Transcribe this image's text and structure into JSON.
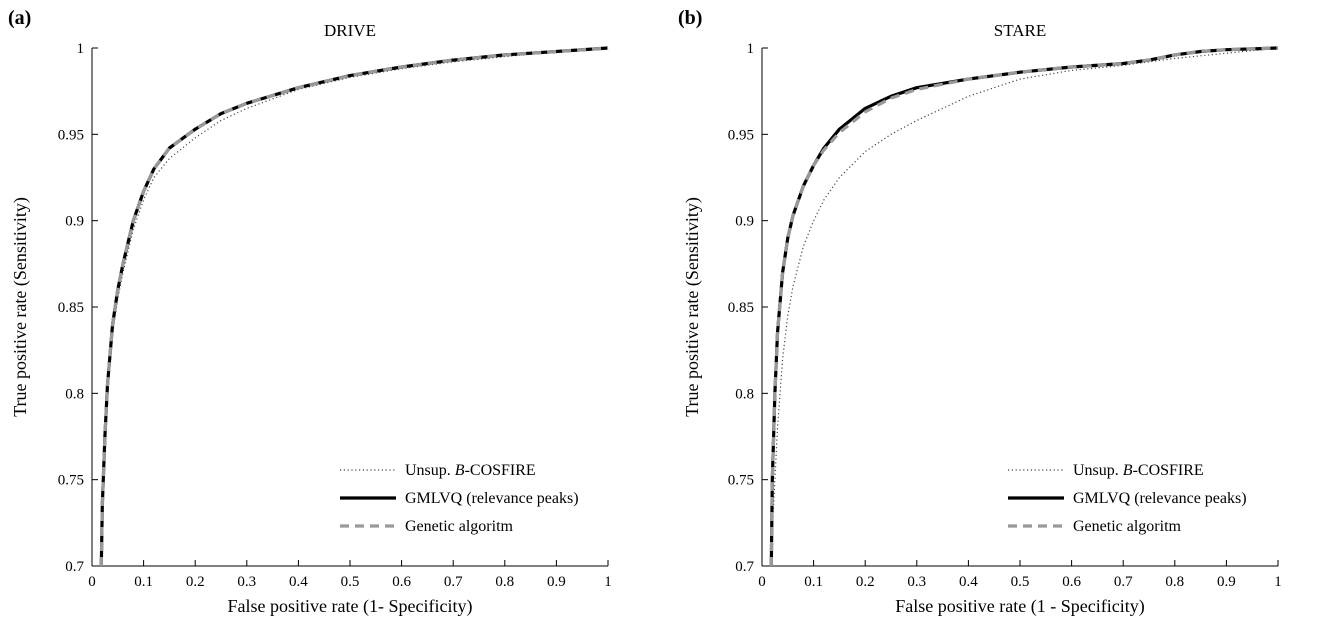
{
  "chart_data": [
    {
      "type": "line",
      "panel_label": "(a)",
      "title": "DRIVE",
      "xlabel": "False positive rate (1- Specificity)",
      "ylabel": "True positive rate (Sensitivity)",
      "xlim": [
        0,
        1
      ],
      "ylim": [
        0.7,
        1
      ],
      "xticks": [
        "0",
        "0.1",
        "0.2",
        "0.3",
        "0.4",
        "0.5",
        "0.6",
        "0.7",
        "0.8",
        "0.9",
        "1"
      ],
      "yticks": [
        "0.7",
        "0.75",
        "0.8",
        "0.85",
        "0.9",
        "0.95",
        "1"
      ],
      "grid": false,
      "legend_position": "bottom-right",
      "series": [
        {
          "name_prefix": "Unsup. ",
          "name_italic": "B",
          "name_suffix": "-COSFIRE",
          "style": "dotted",
          "color": "#444444",
          "x": [
            0.018,
            0.02,
            0.025,
            0.03,
            0.04,
            0.05,
            0.06,
            0.08,
            0.1,
            0.12,
            0.15,
            0.2,
            0.25,
            0.3,
            0.4,
            0.5,
            0.6,
            0.7,
            0.8,
            0.9,
            1.0
          ],
          "y": [
            0.7,
            0.73,
            0.77,
            0.8,
            0.835,
            0.855,
            0.87,
            0.895,
            0.912,
            0.925,
            0.936,
            0.948,
            0.958,
            0.965,
            0.976,
            0.983,
            0.988,
            0.992,
            0.995,
            0.998,
            1.0
          ]
        },
        {
          "name": "GMLVQ (relevance peaks)",
          "style": "solid",
          "color": "#000000",
          "x": [
            0.018,
            0.02,
            0.025,
            0.03,
            0.04,
            0.05,
            0.06,
            0.08,
            0.1,
            0.12,
            0.15,
            0.2,
            0.25,
            0.3,
            0.4,
            0.5,
            0.6,
            0.7,
            0.8,
            0.9,
            1.0
          ],
          "y": [
            0.7,
            0.735,
            0.775,
            0.805,
            0.84,
            0.86,
            0.875,
            0.9,
            0.917,
            0.93,
            0.942,
            0.953,
            0.962,
            0.968,
            0.977,
            0.984,
            0.989,
            0.993,
            0.996,
            0.998,
            1.0
          ]
        },
        {
          "name": "Genetic algoritm",
          "style": "dashed",
          "color": "#999999",
          "x": [
            0.018,
            0.02,
            0.025,
            0.03,
            0.04,
            0.05,
            0.06,
            0.08,
            0.1,
            0.12,
            0.15,
            0.2,
            0.25,
            0.3,
            0.4,
            0.5,
            0.6,
            0.7,
            0.8,
            0.9,
            1.0
          ],
          "y": [
            0.7,
            0.735,
            0.775,
            0.805,
            0.84,
            0.86,
            0.875,
            0.9,
            0.917,
            0.93,
            0.942,
            0.953,
            0.962,
            0.968,
            0.977,
            0.984,
            0.989,
            0.993,
            0.996,
            0.998,
            1.0
          ]
        }
      ]
    },
    {
      "type": "line",
      "panel_label": "(b)",
      "title": "STARE",
      "xlabel": "False positive rate (1 - Specificity)",
      "ylabel": "True positive rate (Sensitivity)",
      "xlim": [
        0,
        1
      ],
      "ylim": [
        0.7,
        1
      ],
      "xticks": [
        "0",
        "0.1",
        "0.2",
        "0.3",
        "0.4",
        "0.5",
        "0.6",
        "0.7",
        "0.8",
        "0.9",
        "1"
      ],
      "yticks": [
        "0.7",
        "0.75",
        "0.8",
        "0.85",
        "0.9",
        "0.95",
        "1"
      ],
      "grid": false,
      "legend_position": "bottom-right",
      "series": [
        {
          "name_prefix": "Unsup. ",
          "name_italic": "B",
          "name_suffix": "-COSFIRE",
          "style": "dotted",
          "color": "#444444",
          "x": [
            0.018,
            0.02,
            0.025,
            0.03,
            0.04,
            0.05,
            0.06,
            0.08,
            0.1,
            0.12,
            0.15,
            0.2,
            0.25,
            0.3,
            0.35,
            0.4,
            0.5,
            0.6,
            0.7,
            0.8,
            0.9,
            1.0
          ],
          "y": [
            0.7,
            0.72,
            0.75,
            0.78,
            0.82,
            0.845,
            0.862,
            0.885,
            0.9,
            0.912,
            0.925,
            0.94,
            0.95,
            0.958,
            0.965,
            0.972,
            0.982,
            0.987,
            0.99,
            0.994,
            0.997,
            1.0
          ]
        },
        {
          "name": "GMLVQ (relevance peaks)",
          "style": "solid",
          "color": "#000000",
          "x": [
            0.018,
            0.02,
            0.025,
            0.03,
            0.04,
            0.05,
            0.06,
            0.08,
            0.1,
            0.12,
            0.15,
            0.2,
            0.25,
            0.3,
            0.4,
            0.5,
            0.6,
            0.7,
            0.75,
            0.8,
            0.85,
            0.9,
            1.0
          ],
          "y": [
            0.7,
            0.75,
            0.8,
            0.835,
            0.87,
            0.89,
            0.903,
            0.92,
            0.932,
            0.942,
            0.953,
            0.965,
            0.972,
            0.977,
            0.982,
            0.986,
            0.989,
            0.991,
            0.993,
            0.996,
            0.998,
            0.999,
            1.0
          ]
        },
        {
          "name": "Genetic algoritm",
          "style": "dashed",
          "color": "#999999",
          "x": [
            0.018,
            0.02,
            0.025,
            0.03,
            0.04,
            0.05,
            0.06,
            0.08,
            0.1,
            0.12,
            0.15,
            0.2,
            0.25,
            0.3,
            0.4,
            0.5,
            0.6,
            0.7,
            0.75,
            0.8,
            0.85,
            0.9,
            1.0
          ],
          "y": [
            0.7,
            0.75,
            0.8,
            0.835,
            0.87,
            0.89,
            0.903,
            0.92,
            0.932,
            0.941,
            0.951,
            0.963,
            0.971,
            0.976,
            0.982,
            0.986,
            0.989,
            0.991,
            0.993,
            0.996,
            0.998,
            0.999,
            1.0
          ]
        }
      ]
    }
  ]
}
